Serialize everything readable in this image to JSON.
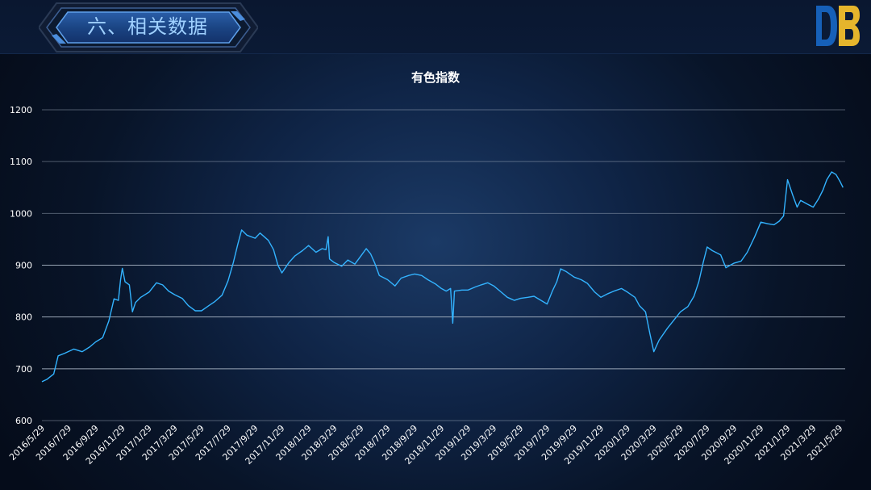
{
  "header": {
    "title": "六、相关数据"
  },
  "colors": {
    "line": "#33b3ff",
    "grid": "#a8b4c4",
    "text": "#ffffff"
  },
  "chart_data": {
    "type": "line",
    "title": "有色指数",
    "xlabel": "",
    "ylabel": "",
    "ylim": [
      600,
      1200
    ],
    "yticks": [
      600,
      700,
      800,
      900,
      1000,
      1100,
      1200
    ],
    "grid": true,
    "xlim": [
      "2016/5/29",
      "2021/6/10"
    ],
    "xticks": [
      "2016/5/29",
      "2016/7/29",
      "2016/9/29",
      "2016/11/29",
      "2017/1/29",
      "2017/3/29",
      "2017/5/29",
      "2017/7/29",
      "2017/9/29",
      "2017/11/29",
      "2018/1/29",
      "2018/3/29",
      "2018/5/29",
      "2018/7/29",
      "2018/9/29",
      "2018/11/29",
      "2019/1/29",
      "2019/3/29",
      "2019/5/29",
      "2019/7/29",
      "2019/9/29",
      "2019/11/29",
      "2020/1/29",
      "2020/3/29",
      "2020/5/29",
      "2020/7/29",
      "2020/9/29",
      "2020/11/29",
      "2021/1/29",
      "2021/3/29",
      "2021/5/29"
    ],
    "series": [
      {
        "points": [
          [
            "2016/5/29",
            675
          ],
          [
            "2016/6/10",
            680
          ],
          [
            "2016/6/25",
            690
          ],
          [
            "2016/7/5",
            725
          ],
          [
            "2016/7/20",
            730
          ],
          [
            "2016/8/10",
            738
          ],
          [
            "2016/8/29",
            733
          ],
          [
            "2016/9/15",
            742
          ],
          [
            "2016/9/29",
            752
          ],
          [
            "2016/10/15",
            760
          ],
          [
            "2016/10/29",
            792
          ],
          [
            "2016/11/10",
            835
          ],
          [
            "2016/11/20",
            832
          ],
          [
            "2016/11/25",
            872
          ],
          [
            "2016/11/29",
            894
          ],
          [
            "2016/12/5",
            868
          ],
          [
            "2016/12/15",
            862
          ],
          [
            "2016/12/22",
            810
          ],
          [
            "2016/12/29",
            828
          ],
          [
            "2017/1/10",
            838
          ],
          [
            "2017/1/29",
            848
          ],
          [
            "2017/2/15",
            866
          ],
          [
            "2017/3/1",
            862
          ],
          [
            "2017/3/15",
            850
          ],
          [
            "2017/3/29",
            843
          ],
          [
            "2017/4/15",
            836
          ],
          [
            "2017/4/29",
            822
          ],
          [
            "2017/5/15",
            812
          ],
          [
            "2017/5/29",
            812
          ],
          [
            "2017/6/15",
            822
          ],
          [
            "2017/6/29",
            830
          ],
          [
            "2017/7/15",
            842
          ],
          [
            "2017/7/29",
            870
          ],
          [
            "2017/8/10",
            905
          ],
          [
            "2017/8/20",
            940
          ],
          [
            "2017/8/29",
            968
          ],
          [
            "2017/9/10",
            958
          ],
          [
            "2017/9/29",
            952
          ],
          [
            "2017/10/10",
            962
          ],
          [
            "2017/10/29",
            948
          ],
          [
            "2017/11/10",
            930
          ],
          [
            "2017/11/20",
            900
          ],
          [
            "2017/11/29",
            885
          ],
          [
            "2017/12/15",
            905
          ],
          [
            "2017/12/29",
            918
          ],
          [
            "2018/1/15",
            928
          ],
          [
            "2018/1/29",
            938
          ],
          [
            "2018/2/15",
            925
          ],
          [
            "2018/3/1",
            932
          ],
          [
            "2018/3/10",
            930
          ],
          [
            "2018/3/15",
            955
          ],
          [
            "2018/3/18",
            912
          ],
          [
            "2018/3/29",
            905
          ],
          [
            "2018/4/15",
            898
          ],
          [
            "2018/4/29",
            910
          ],
          [
            "2018/5/15",
            902
          ],
          [
            "2018/5/29",
            918
          ],
          [
            "2018/6/10",
            932
          ],
          [
            "2018/6/20",
            922
          ],
          [
            "2018/6/29",
            905
          ],
          [
            "2018/7/10",
            880
          ],
          [
            "2018/7/29",
            872
          ],
          [
            "2018/8/15",
            860
          ],
          [
            "2018/8/29",
            875
          ],
          [
            "2018/9/15",
            880
          ],
          [
            "2018/9/29",
            883
          ],
          [
            "2018/10/15",
            880
          ],
          [
            "2018/10/29",
            872
          ],
          [
            "2018/11/15",
            864
          ],
          [
            "2018/11/29",
            855
          ],
          [
            "2018/12/10",
            850
          ],
          [
            "2018/12/20",
            855
          ],
          [
            "2018/12/25",
            788
          ],
          [
            "2018/12/29",
            850
          ],
          [
            "2019/1/15",
            852
          ],
          [
            "2019/1/29",
            852
          ],
          [
            "2019/2/15",
            858
          ],
          [
            "2019/2/28",
            862
          ],
          [
            "2019/3/15",
            866
          ],
          [
            "2019/3/29",
            860
          ],
          [
            "2019/4/15",
            848
          ],
          [
            "2019/4/29",
            838
          ],
          [
            "2019/5/15",
            832
          ],
          [
            "2019/5/29",
            836
          ],
          [
            "2019/6/15",
            838
          ],
          [
            "2019/6/29",
            840
          ],
          [
            "2019/7/15",
            832
          ],
          [
            "2019/7/29",
            825
          ],
          [
            "2019/8/10",
            850
          ],
          [
            "2019/8/20",
            868
          ],
          [
            "2019/8/29",
            893
          ],
          [
            "2019/9/10",
            888
          ],
          [
            "2019/9/29",
            877
          ],
          [
            "2019/10/15",
            872
          ],
          [
            "2019/10/29",
            865
          ],
          [
            "2019/11/15",
            848
          ],
          [
            "2019/11/29",
            838
          ],
          [
            "2019/12/15",
            845
          ],
          [
            "2019/12/29",
            850
          ],
          [
            "2020/1/15",
            855
          ],
          [
            "2020/1/29",
            848
          ],
          [
            "2020/2/15",
            838
          ],
          [
            "2020/2/25",
            822
          ],
          [
            "2020/3/10",
            810
          ],
          [
            "2020/3/20",
            768
          ],
          [
            "2020/3/29",
            733
          ],
          [
            "2020/4/10",
            755
          ],
          [
            "2020/4/29",
            778
          ],
          [
            "2020/5/15",
            795
          ],
          [
            "2020/5/29",
            810
          ],
          [
            "2020/6/15",
            820
          ],
          [
            "2020/6/29",
            840
          ],
          [
            "2020/7/10",
            868
          ],
          [
            "2020/7/20",
            905
          ],
          [
            "2020/7/29",
            935
          ],
          [
            "2020/8/10",
            928
          ],
          [
            "2020/8/29",
            920
          ],
          [
            "2020/9/10",
            895
          ],
          [
            "2020/9/20",
            900
          ],
          [
            "2020/9/29",
            904
          ],
          [
            "2020/10/15",
            908
          ],
          [
            "2020/10/29",
            925
          ],
          [
            "2020/11/15",
            955
          ],
          [
            "2020/11/29",
            983
          ],
          [
            "2020/12/15",
            980
          ],
          [
            "2020/12/29",
            978
          ],
          [
            "2021/1/10",
            985
          ],
          [
            "2021/1/20",
            995
          ],
          [
            "2021/1/29",
            1065
          ],
          [
            "2021/2/10",
            1035
          ],
          [
            "2021/2/20",
            1012
          ],
          [
            "2021/2/28",
            1025
          ],
          [
            "2021/3/15",
            1018
          ],
          [
            "2021/3/29",
            1012
          ],
          [
            "2021/4/10",
            1028
          ],
          [
            "2021/4/20",
            1045
          ],
          [
            "2021/4/29",
            1065
          ],
          [
            "2021/5/10",
            1080
          ],
          [
            "2021/5/20",
            1075
          ],
          [
            "2021/5/29",
            1062
          ],
          [
            "2021/6/5",
            1050
          ]
        ]
      }
    ]
  }
}
